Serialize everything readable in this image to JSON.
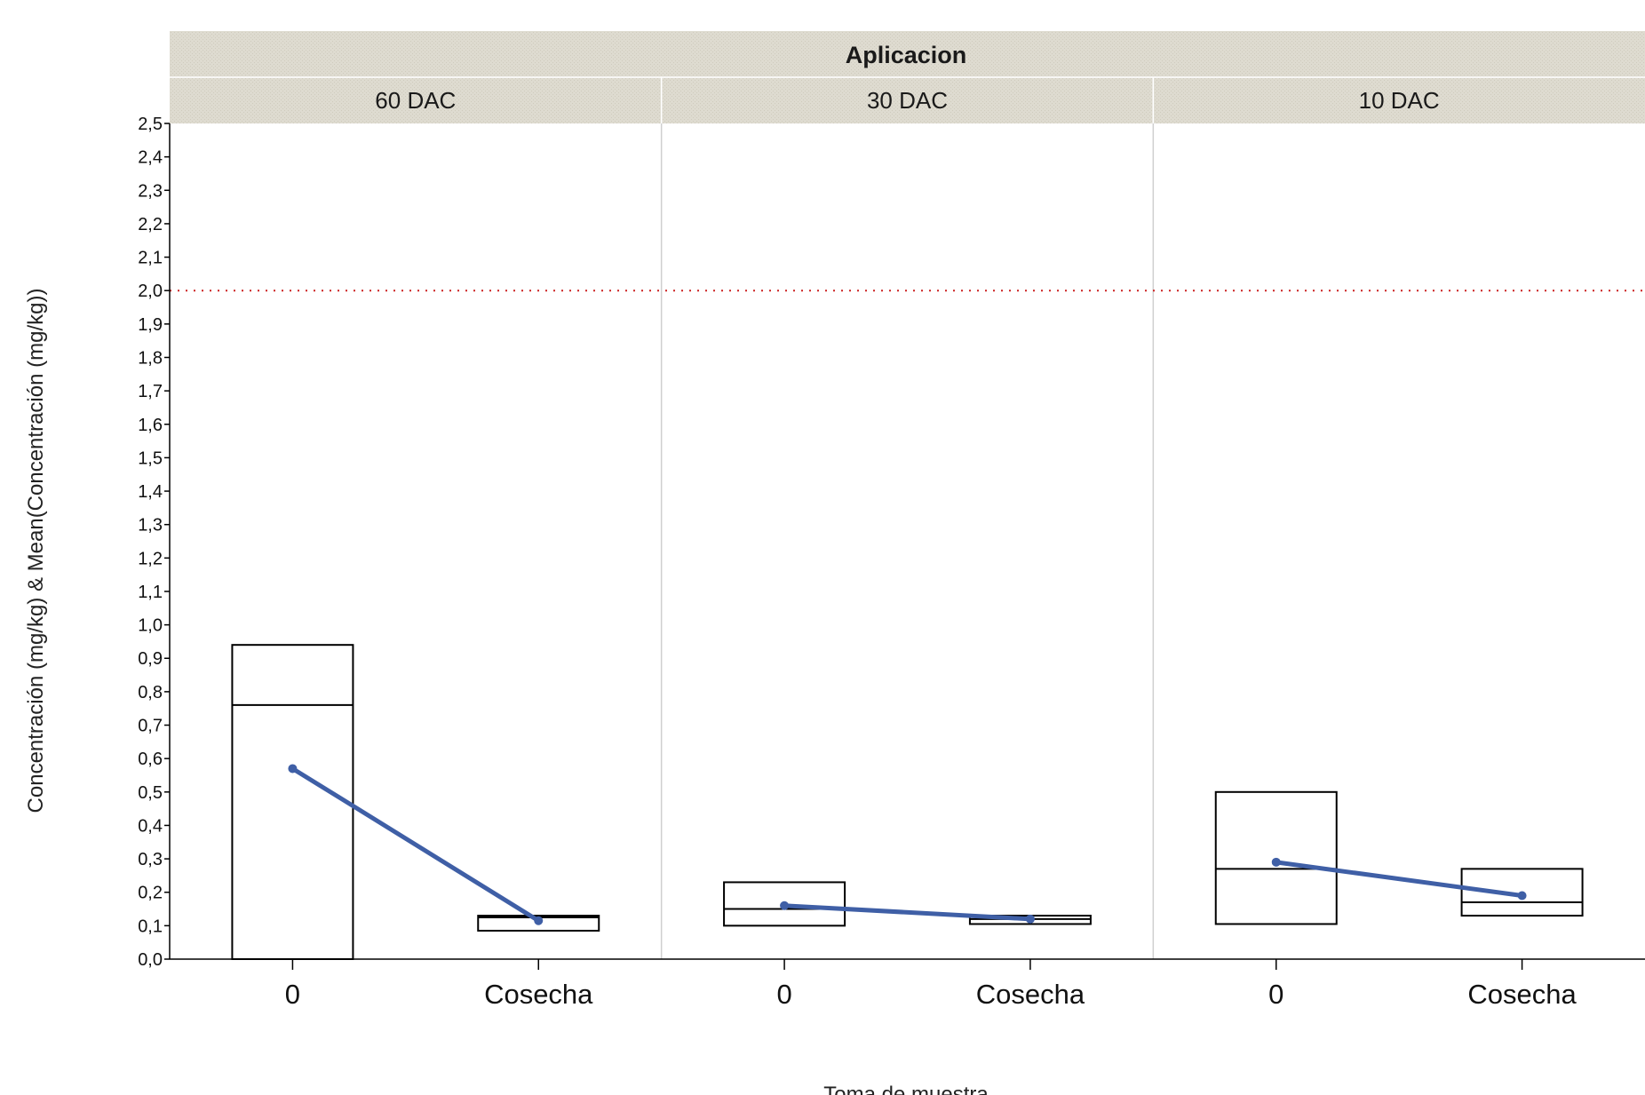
{
  "chart_data": {
    "type": "box-plot with mean line",
    "facet_group_label": "Aplicacion",
    "facets": [
      "60 DAC",
      "30 DAC",
      "10 DAC"
    ],
    "categories": [
      "0",
      "Cosecha"
    ],
    "xlabel": "Toma de muestra",
    "ylabel": "Concentración (mg/kg) & Mean(Concentración (mg/kg))",
    "ylim": [
      0,
      2.5
    ],
    "yticks": [
      "0,0",
      "0,1",
      "0,2",
      "0,3",
      "0,4",
      "0,5",
      "0,6",
      "0,7",
      "0,8",
      "0,9",
      "1,0",
      "1,1",
      "1,2",
      "1,3",
      "1,4",
      "1,5",
      "1,6",
      "1,7",
      "1,8",
      "1,9",
      "2,0",
      "2,1",
      "2,2",
      "2,3",
      "2,4",
      "2,5"
    ],
    "reference_line": {
      "value": 2.0,
      "style": "dotted",
      "color": "#cc2222"
    },
    "boxes": [
      {
        "facet": "60 DAC",
        "category": "0",
        "q1": 0.0,
        "median": 0.76,
        "q3": 0.94
      },
      {
        "facet": "60 DAC",
        "category": "Cosecha",
        "q1": 0.085,
        "median": 0.125,
        "q3": 0.13
      },
      {
        "facet": "30 DAC",
        "category": "0",
        "q1": 0.1,
        "median": 0.15,
        "q3": 0.23
      },
      {
        "facet": "30 DAC",
        "category": "Cosecha",
        "q1": 0.105,
        "median": 0.12,
        "q3": 0.13
      },
      {
        "facet": "10 DAC",
        "category": "0",
        "q1": 0.105,
        "median": 0.27,
        "q3": 0.5
      },
      {
        "facet": "10 DAC",
        "category": "Cosecha",
        "q1": 0.13,
        "median": 0.17,
        "q3": 0.27
      }
    ],
    "means": [
      {
        "facet": "60 DAC",
        "values": [
          0.57,
          0.115
        ]
      },
      {
        "facet": "30 DAC",
        "values": [
          0.16,
          0.12
        ]
      },
      {
        "facet": "10 DAC",
        "values": [
          0.29,
          0.19
        ]
      }
    ],
    "colors": {
      "mean_line": "#3f5fa6",
      "box_stroke": "#000000",
      "header_bg": "#dedbd0",
      "facet_divider": "#cfcfcf"
    },
    "grid": false,
    "legend": "none"
  }
}
